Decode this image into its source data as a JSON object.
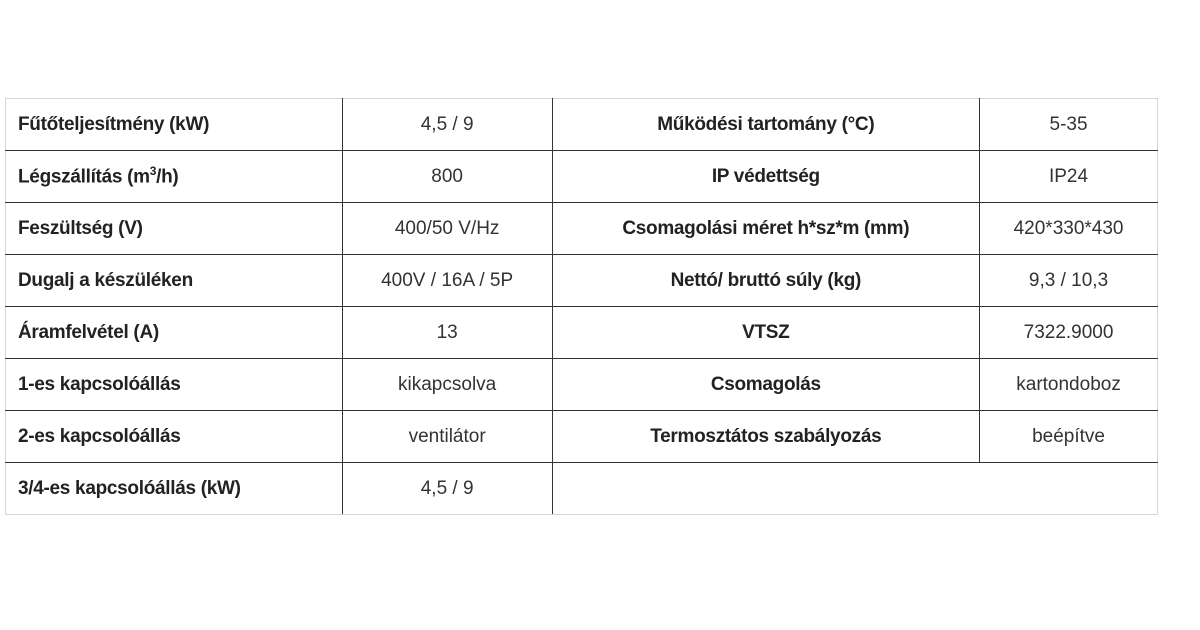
{
  "rows": [
    {
      "k1": "Fűtőteljesítmény (kW)",
      "v1": "4,5 / 9",
      "k2": "Működési tartomány (°C)",
      "v2": "5-35"
    },
    {
      "k1_pre": "Légszállítás (m",
      "k1_sup": "3",
      "k1_post": "/h)",
      "v1": "800",
      "k2": "IP védettség",
      "v2": "IP24"
    },
    {
      "k1": "Feszültség (V)",
      "v1": "400/50 V/Hz",
      "k2": "Csomagolási méret h*sz*m (mm)",
      "v2": "420*330*430"
    },
    {
      "k1": "Dugalj a készüléken",
      "v1": "400V / 16A / 5P",
      "k2": "Nettó/ bruttó súly (kg)",
      "v2": "9,3 / 10,3"
    },
    {
      "k1": "Áramfelvétel (A)",
      "v1": "13",
      "k2": "VTSZ",
      "v2": "7322.9000"
    },
    {
      "k1": "1-es kapcsolóállás",
      "v1": "kikapcsolva",
      "k2": "Csomagolás",
      "v2": "kartondoboz"
    },
    {
      "k1": "2-es kapcsolóállás",
      "v1": "ventilátor",
      "k2": "Termosztátos szabályozás",
      "v2": "beépítve"
    },
    {
      "k1": "3/4-es kapcsolóállás (kW)",
      "v1": "4,5 / 9"
    }
  ]
}
